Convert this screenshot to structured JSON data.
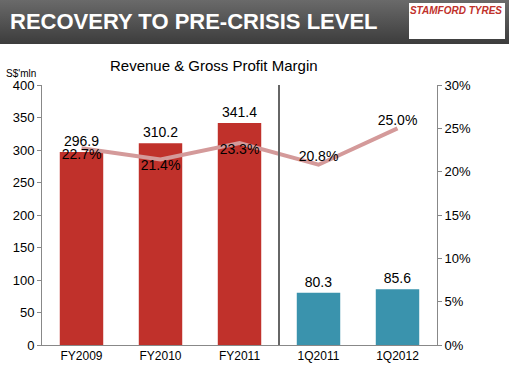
{
  "header": {
    "title": "RECOVERY TO PRE-CRISIS LEVEL",
    "logo": "STAMFORD TYRES"
  },
  "chart_data": {
    "type": "bar",
    "title": "Revenue & Gross Profit Margin",
    "ylabel": "S$'mln",
    "categories": [
      "FY2009",
      "FY2010",
      "FY2011",
      "1Q2011",
      "1Q2012"
    ],
    "series": [
      {
        "type": "bar",
        "colors": [
          "#c0312b",
          "#c0312b",
          "#c0312b",
          "#3a93ad",
          "#3a93ad"
        ],
        "values": [
          296.9,
          310.2,
          341.4,
          80.3,
          85.6
        ],
        "data_labels": true
      },
      {
        "type": "line",
        "axis": "y2",
        "color": "#d49a9a",
        "values": [
          22.7,
          21.4,
          23.3,
          20.8,
          25.0
        ],
        "value_labels": [
          "22.7%",
          "21.4%",
          "23.3%",
          "20.8%",
          "25.0%"
        ],
        "data_labels": true
      }
    ],
    "ylim": [
      0,
      400
    ],
    "yticks": [
      0,
      50,
      100,
      150,
      200,
      250,
      300,
      350,
      400
    ],
    "y2lim": [
      0,
      30
    ],
    "y2ticks": [
      {
        "value": 0,
        "label": "0%"
      },
      {
        "value": 5,
        "label": "5%"
      },
      {
        "value": 10,
        "label": "10%"
      },
      {
        "value": 15,
        "label": "15%"
      },
      {
        "value": 20,
        "label": "20%"
      },
      {
        "value": 25,
        "label": "25%"
      },
      {
        "value": 30,
        "label": "30%"
      }
    ],
    "grid": false
  }
}
